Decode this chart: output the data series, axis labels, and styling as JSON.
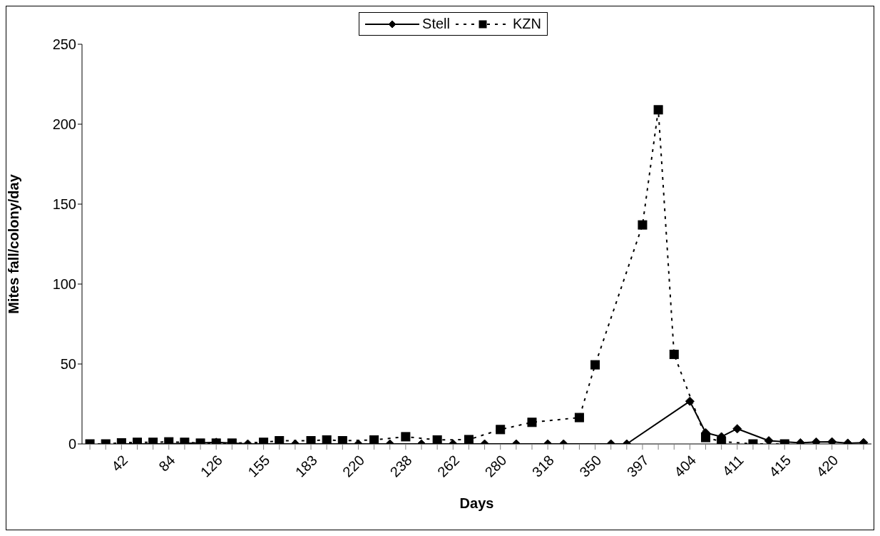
{
  "chart_data": {
    "type": "line",
    "xlabel": "Days",
    "ylabel": "Mites fall/colony/day",
    "categories": [
      null,
      null,
      "42",
      null,
      null,
      "84",
      null,
      null,
      "126",
      null,
      null,
      "155",
      null,
      null,
      "183",
      null,
      null,
      "220",
      null,
      null,
      "238",
      null,
      null,
      "262",
      null,
      null,
      "280",
      null,
      null,
      "318",
      null,
      null,
      "350",
      null,
      null,
      "397",
      null,
      null,
      "404",
      null,
      null,
      "411",
      null,
      null,
      "415",
      null,
      null,
      "420",
      null,
      null
    ],
    "series": [
      {
        "name": "Stell",
        "color": "#000000",
        "marker": "diamond",
        "line_style": "solid",
        "values": [
          null,
          null,
          0,
          0,
          0,
          0,
          null,
          null,
          1,
          null,
          0,
          null,
          null,
          0,
          null,
          null,
          null,
          0,
          null,
          0,
          null,
          0,
          null,
          0,
          null,
          0,
          null,
          0,
          null,
          0,
          0,
          null,
          null,
          0,
          0,
          null,
          null,
          null,
          26.7,
          7,
          4.5,
          9.5,
          null,
          2,
          null,
          0.7,
          1.2,
          1.3,
          0.5,
          0.8
        ]
      },
      {
        "name": "KZN",
        "color": "#000000",
        "marker": "square",
        "line_style": "dotted",
        "values": [
          0,
          0,
          0.7,
          1,
          1,
          1.3,
          1,
          0.5,
          0.5,
          0.5,
          null,
          1,
          2,
          null,
          2,
          2.5,
          2,
          null,
          2.5,
          null,
          4.5,
          null,
          2.5,
          null,
          2.7,
          null,
          9,
          null,
          13.5,
          null,
          null,
          16.5,
          49.5,
          null,
          null,
          137,
          209,
          56,
          null,
          4,
          1.5,
          null,
          0,
          null,
          0,
          null,
          null,
          null,
          null,
          null
        ]
      }
    ],
    "ylim": [
      0,
      250
    ],
    "yticks": [
      0,
      50,
      100,
      150,
      200,
      250
    ],
    "legend": "top"
  }
}
